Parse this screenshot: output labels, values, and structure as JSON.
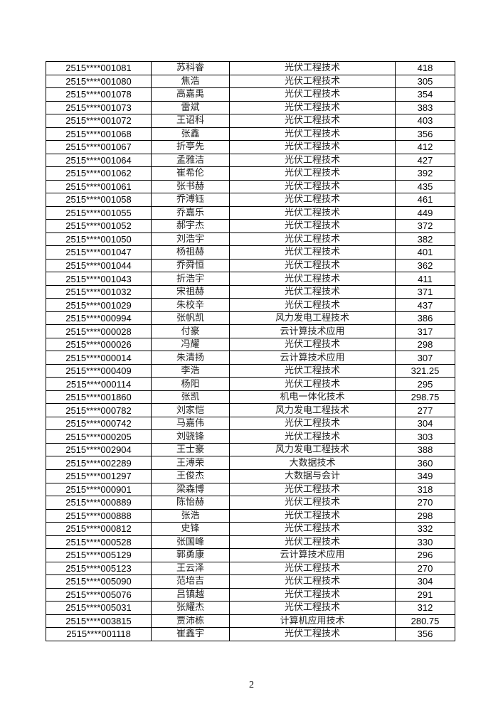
{
  "table": {
    "rows": [
      [
        "2515****001081",
        "苏科睿",
        "光伏工程技术",
        "418"
      ],
      [
        "2515****001080",
        "焦浩",
        "光伏工程技术",
        "305"
      ],
      [
        "2515****001078",
        "高嘉禹",
        "光伏工程技术",
        "354"
      ],
      [
        "2515****001073",
        "雷斌",
        "光伏工程技术",
        "383"
      ],
      [
        "2515****001072",
        "王诏科",
        "光伏工程技术",
        "403"
      ],
      [
        "2515****001068",
        "张鑫",
        "光伏工程技术",
        "356"
      ],
      [
        "2515****001067",
        "折亭先",
        "光伏工程技术",
        "412"
      ],
      [
        "2515****001064",
        "孟雅洁",
        "光伏工程技术",
        "427"
      ],
      [
        "2515****001062",
        "崔希伦",
        "光伏工程技术",
        "392"
      ],
      [
        "2515****001061",
        "张书赫",
        "光伏工程技术",
        "435"
      ],
      [
        "2515****001058",
        "乔溥钰",
        "光伏工程技术",
        "461"
      ],
      [
        "2515****001055",
        "乔嘉乐",
        "光伏工程技术",
        "449"
      ],
      [
        "2515****001052",
        "郝宇杰",
        "光伏工程技术",
        "372"
      ],
      [
        "2515****001050",
        "刘浩宇",
        "光伏工程技术",
        "382"
      ],
      [
        "2515****001047",
        "杨祖赫",
        "光伏工程技术",
        "401"
      ],
      [
        "2515****001044",
        "乔舜恒",
        "光伏工程技术",
        "362"
      ],
      [
        "2515****001043",
        "折浩宇",
        "光伏工程技术",
        "411"
      ],
      [
        "2515****001032",
        "宋祖赫",
        "光伏工程技术",
        "371"
      ],
      [
        "2515****001029",
        "朱校辛",
        "光伏工程技术",
        "437"
      ],
      [
        "2515****000994",
        "张帆凯",
        "风力发电工程技术",
        "386"
      ],
      [
        "2515****000028",
        "付豪",
        "云计算技术应用",
        "317"
      ],
      [
        "2515****000026",
        "冯耀",
        "光伏工程技术",
        "298"
      ],
      [
        "2515****000014",
        "朱清扬",
        "云计算技术应用",
        "307"
      ],
      [
        "2515****000409",
        "李浩",
        "光伏工程技术",
        "321.25"
      ],
      [
        "2515****000114",
        "杨阳",
        "光伏工程技术",
        "295"
      ],
      [
        "2515****001860",
        "张凯",
        "机电一体化技术",
        "298.75"
      ],
      [
        "2515****000782",
        "刘家恺",
        "风力发电工程技术",
        "277"
      ],
      [
        "2515****000742",
        "马嘉伟",
        "光伏工程技术",
        "304"
      ],
      [
        "2515****000205",
        "刘骁锋",
        "光伏工程技术",
        "303"
      ],
      [
        "2515****002904",
        "王士豪",
        "风力发电工程技术",
        "388"
      ],
      [
        "2515****002289",
        "王溥荣",
        "大数据技术",
        "360"
      ],
      [
        "2515****001297",
        "王俊杰",
        "大数据与会计",
        "349"
      ],
      [
        "2515****000901",
        "梁森博",
        "光伏工程技术",
        "318"
      ],
      [
        "2515****000889",
        "陈怡赫",
        "光伏工程技术",
        "270"
      ],
      [
        "2515****000888",
        "张浩",
        "光伏工程技术",
        "298"
      ],
      [
        "2515****000812",
        "史锋",
        "光伏工程技术",
        "332"
      ],
      [
        "2515****000528",
        "张国峰",
        "光伏工程技术",
        "330"
      ],
      [
        "2515****005129",
        "郭勇康",
        "云计算技术应用",
        "296"
      ],
      [
        "2515****005123",
        "王云泽",
        "光伏工程技术",
        "270"
      ],
      [
        "2515****005090",
        "范培吉",
        "光伏工程技术",
        "304"
      ],
      [
        "2515****005076",
        "吕镇越",
        "光伏工程技术",
        "291"
      ],
      [
        "2515****005031",
        "张耀杰",
        "光伏工程技术",
        "312"
      ],
      [
        "2515****003815",
        "贾沛栋",
        "计算机应用技术",
        "280.75"
      ],
      [
        "2515****001118",
        "崔鑫宇",
        "光伏工程技术",
        "356"
      ]
    ]
  },
  "page_number": "2"
}
